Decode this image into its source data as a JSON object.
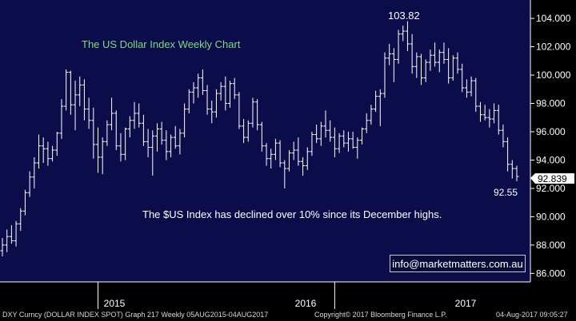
{
  "colors": {
    "plot_background": "#0c0c4a",
    "axis_background": "#000000",
    "price_bars": "#ffffff",
    "title_text": "#7ddc7d",
    "annotation_text": "#ffffff"
  },
  "footer": {
    "left": "DXY Curncy (DOLLAR INDEX SPOT) Graph 217  Weekly 05AUG2015-04AUG2017",
    "center": "Copyright© 2017 Bloomberg Finance L.P.",
    "right": "04-Aug-2017 09:05:27"
  },
  "email": "info@marketmatters.com.au",
  "chart_data": {
    "type": "ohlc",
    "title": "The US Dollar Index Weekly Chart",
    "annotation": "The $US Index has declined over 10% since its December highs.",
    "last_value_label": "92.839",
    "high_label": "103.82",
    "low_label": "92.55",
    "x_tick_labels": [
      "2015",
      "2016",
      "2017"
    ],
    "y_ticks": [
      "86.000",
      "88.000",
      "90.000",
      "92.000",
      "94.000",
      "96.000",
      "98.000",
      "100.000",
      "102.000",
      "104.000"
    ],
    "ylim": [
      85.4,
      105.3
    ],
    "grid": false,
    "series": [
      {
        "values": [
          [
            87.6,
            88.5,
            87.2,
            88.0
          ],
          [
            88.0,
            89.1,
            87.5,
            88.6
          ],
          [
            88.6,
            89.4,
            88.1,
            88.3
          ],
          [
            88.3,
            89.7,
            87.9,
            89.5
          ],
          [
            89.5,
            90.6,
            89.0,
            90.4
          ],
          [
            90.4,
            91.9,
            90.1,
            91.7
          ],
          [
            91.7,
            93.2,
            91.4,
            92.8
          ],
          [
            92.8,
            94.2,
            92.0,
            93.8
          ],
          [
            93.8,
            95.8,
            93.4,
            95.0
          ],
          [
            95.0,
            95.6,
            93.8,
            94.8
          ],
          [
            94.8,
            95.3,
            93.6,
            94.1
          ],
          [
            94.1,
            95.0,
            93.9,
            94.7
          ],
          [
            94.7,
            96.0,
            94.3,
            95.9
          ],
          [
            95.9,
            98.3,
            95.5,
            97.8
          ],
          [
            97.8,
            100.4,
            97.5,
            100.2
          ],
          [
            100.2,
            100.3,
            97.2,
            97.9
          ],
          [
            97.9,
            99.6,
            96.1,
            98.6
          ],
          [
            98.6,
            99.9,
            97.8,
            99.3
          ],
          [
            99.3,
            99.7,
            96.8,
            97.6
          ],
          [
            97.6,
            98.4,
            96.2,
            96.8
          ],
          [
            96.8,
            97.7,
            94.1,
            95.1
          ],
          [
            95.1,
            96.3,
            93.1,
            94.2
          ],
          [
            94.2,
            95.6,
            93.0,
            95.3
          ],
          [
            95.3,
            96.8,
            95.0,
            96.5
          ],
          [
            96.5,
            98.4,
            96.1,
            97.3
          ],
          [
            97.3,
            97.5,
            94.7,
            95.0
          ],
          [
            95.0,
            95.9,
            93.9,
            94.4
          ],
          [
            94.4,
            96.3,
            94.0,
            96.2
          ],
          [
            96.2,
            97.1,
            95.6,
            96.8
          ],
          [
            96.8,
            98.1,
            96.2,
            97.3
          ],
          [
            97.3,
            98.0,
            96.3,
            96.6
          ],
          [
            96.6,
            97.2,
            95.0,
            95.3
          ],
          [
            95.3,
            96.2,
            94.2,
            94.9
          ],
          [
            94.9,
            96.1,
            92.9,
            95.7
          ],
          [
            95.7,
            96.6,
            94.6,
            96.2
          ],
          [
            96.2,
            96.7,
            95.1,
            95.4
          ],
          [
            95.4,
            96.1,
            94.0,
            94.6
          ],
          [
            94.6,
            95.8,
            94.2,
            95.6
          ],
          [
            95.6,
            96.4,
            94.8,
            95.0
          ],
          [
            95.0,
            96.2,
            94.4,
            95.9
          ],
          [
            95.9,
            98.0,
            95.6,
            97.6
          ],
          [
            97.6,
            99.0,
            97.3,
            98.8
          ],
          [
            98.8,
            99.5,
            98.0,
            99.1
          ],
          [
            99.1,
            100.1,
            98.4,
            99.8
          ],
          [
            99.8,
            100.4,
            98.6,
            98.9
          ],
          [
            98.9,
            99.3,
            97.2,
            97.6
          ],
          [
            97.6,
            98.2,
            96.6,
            97.4
          ],
          [
            97.4,
            99.0,
            97.0,
            98.7
          ],
          [
            98.7,
            99.5,
            98.2,
            99.2
          ],
          [
            99.2,
            99.9,
            97.5,
            98.0
          ],
          [
            98.0,
            99.6,
            97.7,
            99.4
          ],
          [
            99.4,
            99.8,
            98.3,
            98.6
          ],
          [
            98.6,
            98.8,
            96.2,
            96.4
          ],
          [
            96.4,
            96.9,
            95.2,
            95.6
          ],
          [
            95.6,
            96.8,
            95.3,
            96.6
          ],
          [
            96.6,
            98.4,
            96.3,
            98.1
          ],
          [
            98.1,
            98.3,
            96.1,
            96.5
          ],
          [
            96.5,
            96.7,
            94.6,
            95.0
          ],
          [
            95.0,
            95.2,
            93.6,
            94.1
          ],
          [
            94.1,
            94.8,
            93.4,
            94.4
          ],
          [
            94.4,
            95.5,
            94.0,
            95.2
          ],
          [
            95.2,
            95.4,
            93.5,
            93.8
          ],
          [
            93.8,
            94.0,
            92.0,
            93.4
          ],
          [
            93.4,
            94.7,
            93.2,
            94.5
          ],
          [
            94.5,
            95.3,
            94.0,
            94.7
          ],
          [
            94.7,
            95.6,
            93.6,
            93.9
          ],
          [
            93.9,
            94.2,
            92.9,
            93.6
          ],
          [
            93.6,
            94.9,
            93.3,
            94.6
          ],
          [
            94.6,
            96.0,
            94.3,
            95.8
          ],
          [
            95.8,
            96.5,
            95.2,
            95.5
          ],
          [
            95.5,
            96.7,
            95.0,
            96.4
          ],
          [
            96.4,
            97.5,
            95.6,
            96.1
          ],
          [
            96.1,
            96.8,
            95.3,
            95.6
          ],
          [
            95.6,
            96.3,
            94.2,
            94.8
          ],
          [
            94.8,
            95.9,
            94.5,
            95.7
          ],
          [
            95.7,
            96.1,
            94.9,
            95.2
          ],
          [
            95.2,
            96.0,
            94.6,
            95.5
          ],
          [
            95.5,
            96.0,
            94.8,
            94.9
          ],
          [
            94.9,
            95.6,
            94.1,
            95.4
          ],
          [
            95.4,
            96.3,
            95.1,
            96.2
          ],
          [
            96.2,
            97.3,
            95.9,
            96.8
          ],
          [
            96.8,
            97.9,
            96.5,
            97.6
          ],
          [
            97.6,
            98.9,
            97.4,
            98.5
          ],
          [
            98.5,
            99.0,
            96.4,
            98.7
          ],
          [
            98.7,
            101.6,
            98.4,
            101.2
          ],
          [
            101.2,
            102.2,
            100.7,
            101.5
          ],
          [
            101.5,
            101.9,
            99.5,
            101.1
          ],
          [
            101.1,
            103.2,
            100.8,
            102.9
          ],
          [
            102.9,
            103.5,
            102.4,
            103.1
          ],
          [
            103.1,
            103.8,
            101.7,
            102.2
          ],
          [
            102.2,
            102.9,
            100.1,
            100.6
          ],
          [
            100.6,
            101.6,
            99.8,
            101.3
          ],
          [
            101.3,
            101.5,
            99.3,
            99.8
          ],
          [
            99.8,
            101.1,
            99.5,
            100.9
          ],
          [
            100.9,
            101.8,
            100.3,
            101.4
          ],
          [
            101.4,
            102.3,
            100.6,
            100.9
          ],
          [
            100.9,
            101.8,
            100.2,
            101.6
          ],
          [
            101.6,
            102.3,
            100.8,
            101.1
          ],
          [
            101.1,
            101.9,
            99.4,
            99.8
          ],
          [
            99.8,
            101.4,
            99.6,
            101.2
          ],
          [
            101.2,
            101.6,
            100.1,
            100.4
          ],
          [
            100.4,
            100.8,
            98.8,
            99.1
          ],
          [
            99.1,
            99.7,
            98.4,
            98.8
          ],
          [
            98.8,
            99.9,
            98.5,
            99.6
          ],
          [
            99.6,
            99.8,
            97.4,
            97.8
          ],
          [
            97.8,
            98.1,
            96.7,
            97.2
          ],
          [
            97.2,
            97.9,
            96.8,
            97.0
          ],
          [
            97.0,
            97.6,
            96.3,
            96.9
          ],
          [
            96.9,
            98.0,
            96.6,
            97.5
          ],
          [
            97.5,
            97.9,
            95.8,
            96.1
          ],
          [
            96.1,
            96.5,
            94.9,
            95.3
          ],
          [
            95.3,
            95.6,
            93.2,
            93.7
          ],
          [
            93.7,
            94.0,
            92.7,
            93.4
          ],
          [
            93.4,
            93.6,
            92.5,
            92.84
          ]
        ]
      }
    ]
  }
}
